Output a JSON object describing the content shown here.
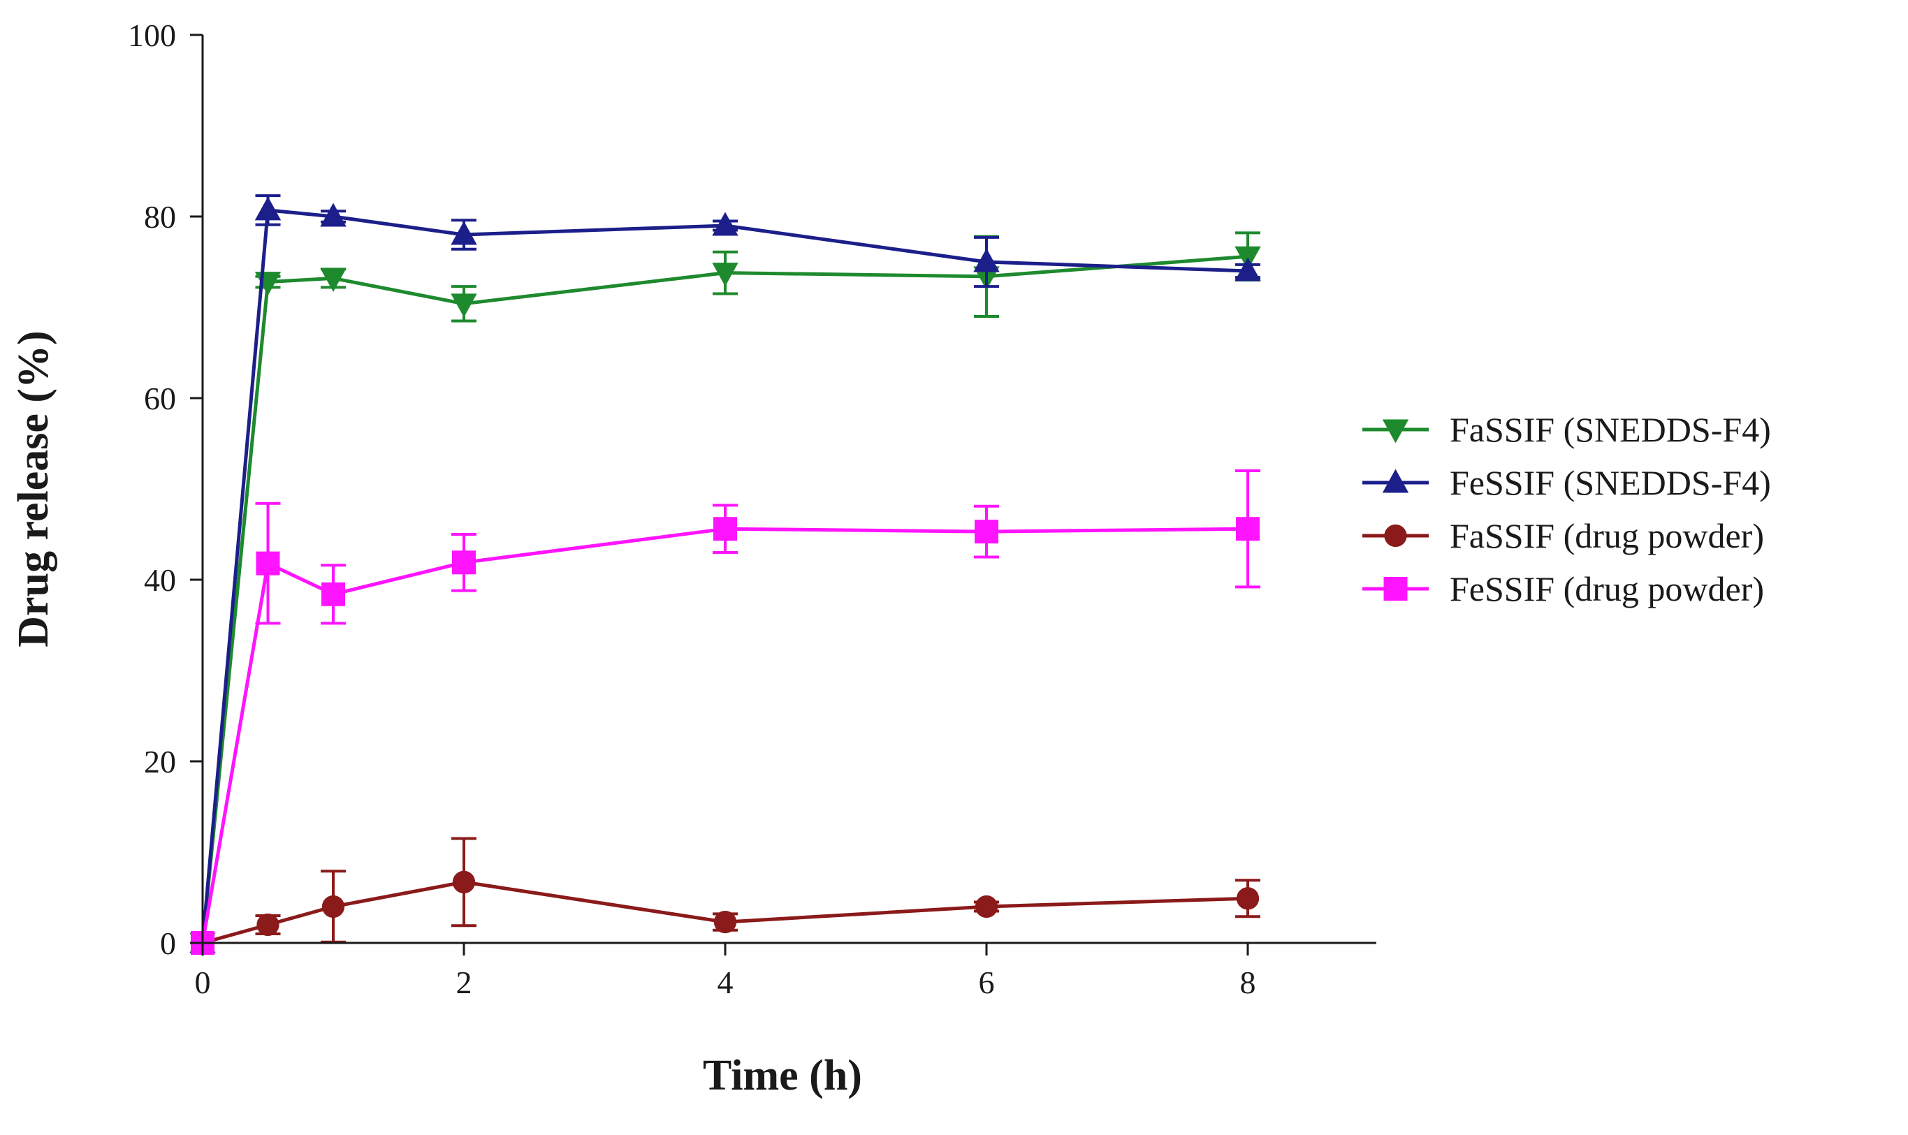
{
  "chart_data": {
    "type": "line",
    "title": "",
    "xlabel": "Time (h)",
    "ylabel": "Drug release (%)",
    "xlim": [
      0,
      9
    ],
    "ylim": [
      0,
      100
    ],
    "xticks": [
      0,
      2,
      4,
      6,
      8
    ],
    "yticks": [
      0,
      20,
      40,
      60,
      80,
      100
    ],
    "x": [
      0,
      0.5,
      1,
      2,
      4,
      6,
      8
    ],
    "grid": false,
    "legend_position": "right",
    "series": [
      {
        "name": "FaSSIF (SNEDDS-F4)",
        "color": "#1e8a2e",
        "marker": "triangle-down",
        "values": [
          0,
          72.8,
          73.2,
          70.4,
          73.8,
          73.4,
          75.6
        ],
        "errors": [
          0,
          0.6,
          1.0,
          1.9,
          2.3,
          4.4,
          2.6
        ]
      },
      {
        "name": "FeSSIF (SNEDDS-F4)",
        "color": "#1c1f8a",
        "marker": "triangle-up",
        "values": [
          0,
          80.7,
          80.0,
          78.0,
          79.0,
          75.0,
          74.0
        ],
        "errors": [
          0,
          1.6,
          0.6,
          1.6,
          0.5,
          2.7,
          0.7
        ]
      },
      {
        "name": "FaSSIF (drug powder)",
        "color": "#8b1a1a",
        "marker": "circle",
        "values": [
          0,
          2.0,
          4.0,
          6.7,
          2.3,
          4.0,
          4.9
        ],
        "errors": [
          0,
          1.0,
          3.9,
          4.8,
          0.9,
          0.5,
          2.0
        ]
      },
      {
        "name": "FeSSIF (drug powder)",
        "color": "#ff14ff",
        "marker": "square",
        "values": [
          0,
          41.8,
          38.4,
          41.9,
          45.6,
          45.3,
          45.6
        ],
        "errors": [
          0,
          6.6,
          3.2,
          3.1,
          2.6,
          2.8,
          6.4
        ]
      }
    ]
  }
}
